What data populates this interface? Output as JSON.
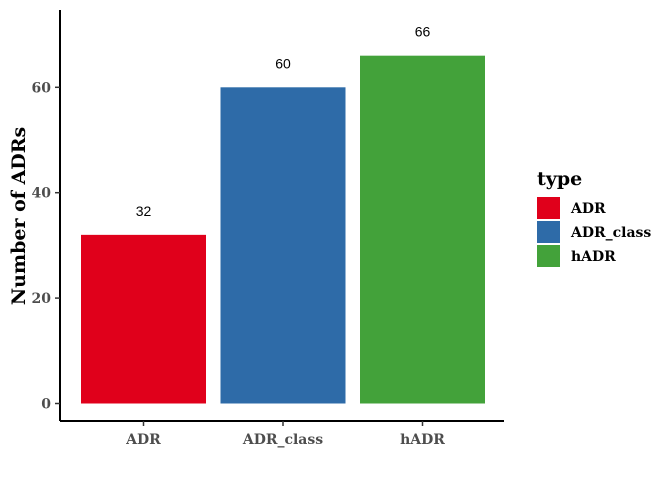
{
  "chart_data": {
    "type": "bar",
    "categories": [
      "ADR",
      "ADR_class",
      "hADR"
    ],
    "values": [
      32,
      60,
      66
    ],
    "data_labels": [
      "32",
      "60",
      "66"
    ],
    "colors": [
      "#E0001B",
      "#2E6BA8",
      "#43A23A"
    ],
    "title": "",
    "xlabel": "",
    "ylabel": "Number of ADRs",
    "ylim": [
      0,
      73
    ],
    "yticks": [
      0,
      20,
      40,
      60
    ],
    "grid": false,
    "legend": {
      "title": "type",
      "placement": "right",
      "entries": [
        "ADR",
        "ADR_class",
        "hADR"
      ]
    }
  }
}
